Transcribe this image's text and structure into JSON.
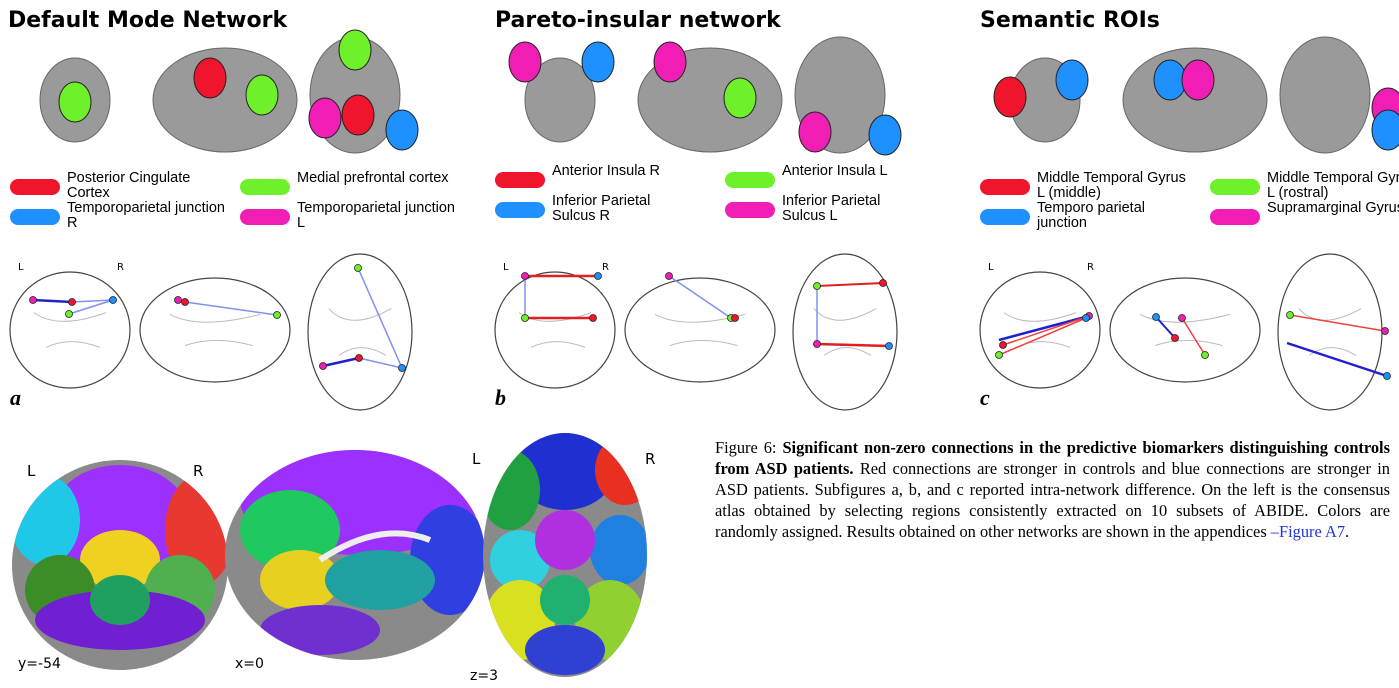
{
  "panels": [
    {
      "title": "Default Mode Network",
      "letter": "a",
      "orient": [
        "L",
        "R"
      ],
      "legend": [
        {
          "label": "Posterior Cingulate Cortex",
          "color": "#f0142d"
        },
        {
          "label": "Medial prefrontal cortex",
          "color": "#6ef02a"
        },
        {
          "label": "Temporoparietal junction R",
          "color": "#1e90ff"
        },
        {
          "label": "Temporoparietal junction L",
          "color": "#f01eb4"
        }
      ]
    },
    {
      "title": "Pareto-insular network",
      "letter": "b",
      "orient": [
        "L",
        "R"
      ],
      "legend": [
        {
          "label": "Anterior Insula R",
          "color": "#f0142d"
        },
        {
          "label": "Anterior Insula L",
          "color": "#6ef02a"
        },
        {
          "label": "Inferior Parietal Sulcus R",
          "color": "#1e90ff"
        },
        {
          "label": "Inferior Parietal Sulcus L",
          "color": "#f01eb4"
        }
      ]
    },
    {
      "title": "Semantic ROIs",
      "letter": "c",
      "orient": [
        "L",
        "R"
      ],
      "legend": [
        {
          "label": "Middle Temporal Gyrus L (middle)",
          "color": "#f0142d"
        },
        {
          "label": "Middle Temporal Gyrus L (rostral)",
          "color": "#6ef02a"
        },
        {
          "label": "Temporo parietal junction",
          "color": "#1e90ff"
        },
        {
          "label": "Supramarginal Gyrus",
          "color": "#f01eb4"
        }
      ]
    }
  ],
  "atlas": {
    "orient": [
      "L",
      "R",
      "L",
      "R"
    ],
    "coords": [
      "y=-54",
      "x=0",
      "z=3"
    ]
  },
  "caption": {
    "label": "Figure 6:",
    "bold": "Significant non-zero connections in the predictive biomarkers distinguishing controls from ASD patients.",
    "text": "Red connections are stronger in controls and blue connections are stronger in ASD patients. Subfigures a, b, and c reported intra-network difference. On the left is the consensus atlas obtained by selecting regions consistently extracted on 10 subsets of ABIDE. Colors are randomly assigned. Results obtained on other networks are shown in the appendices ",
    "link": "–Figure A7",
    "end": "."
  }
}
